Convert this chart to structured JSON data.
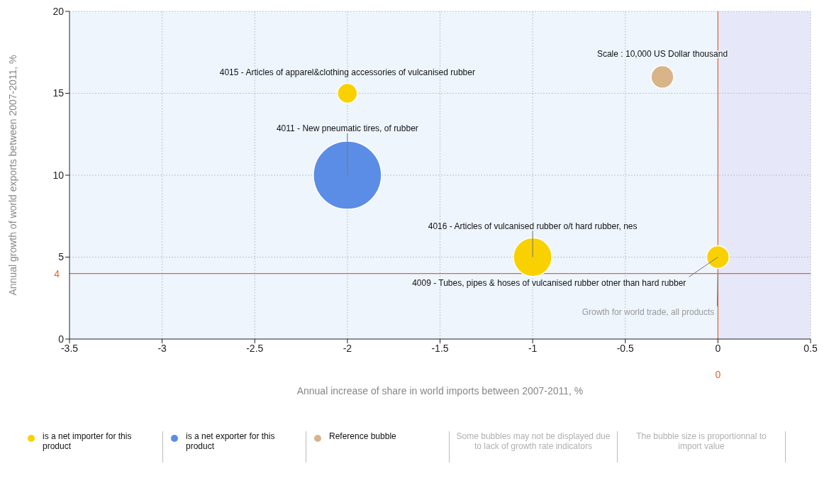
{
  "chart_data": {
    "type": "bubble",
    "xlabel": "Annual increase of  share in world imports between 2007-2011, %",
    "ylabel": "Annual growth of world exports between 2007-2011, %",
    "series": [
      {
        "name": "is a net importer for this product",
        "color": "#f9d100",
        "x": [
          -2,
          -1,
          0
        ],
        "values": [
          15,
          5,
          5
        ],
        "sizes": [
          0.085,
          0.32,
          0.11
        ]
      },
      {
        "name": "is a net exporter for this product",
        "color": "#5b8de6",
        "x": [
          -2
        ],
        "values": [
          10
        ],
        "sizes": [
          1
        ]
      },
      {
        "name": "Reference bubble",
        "color": "#d9b48a",
        "x": [
          -0.3
        ],
        "values": [
          16
        ],
        "sizes": [
          0.11
        ]
      }
    ],
    "xlim": [
      -3.5,
      0.5
    ],
    "xticks": [
      -3.5,
      -3,
      -2.5,
      -2,
      -1.5,
      -1,
      -0.5,
      0,
      0.5
    ],
    "ylim": [
      0,
      20
    ],
    "yticks": [
      0,
      5,
      10,
      15,
      20
    ],
    "grid": true,
    "legend": "bottom",
    "ref_lines": [
      {
        "axis": "y",
        "value": 4,
        "label": "4",
        "color": "#e8642c"
      },
      {
        "axis": "x",
        "value": 0,
        "label": "0",
        "color": "#e8642c"
      }
    ],
    "bands": [
      {
        "axis": "x",
        "from": 0,
        "to": 0.5,
        "color": "#e6e7f8"
      }
    ],
    "annotations": [
      {
        "text": "4015 - Articles of apparel&clothing accessories of vulcanised rubber",
        "x": -2,
        "y": 15
      },
      {
        "text": "4011 - New pneumatic tires, of rubber",
        "x": -2,
        "y": 10
      },
      {
        "text": "4016 - Articles of vulcanised rubber o/t hard rubber, nes",
        "x": -1,
        "y": 5
      },
      {
        "text": "4009 - Tubes, pipes & hoses of vulcanised rubber otner than hard rubber",
        "x": 0,
        "y": 5
      },
      {
        "text": "Scale : 10,000 US Dollar thousand",
        "x": -0.3,
        "y": 16
      },
      {
        "text": "Growth for world trade, all products",
        "x": 0,
        "y": 4
      },
      "Some bubbles may not be displayed due to lack of growth rate indicators",
      "The bubble size is proportionnal to import value"
    ]
  }
}
